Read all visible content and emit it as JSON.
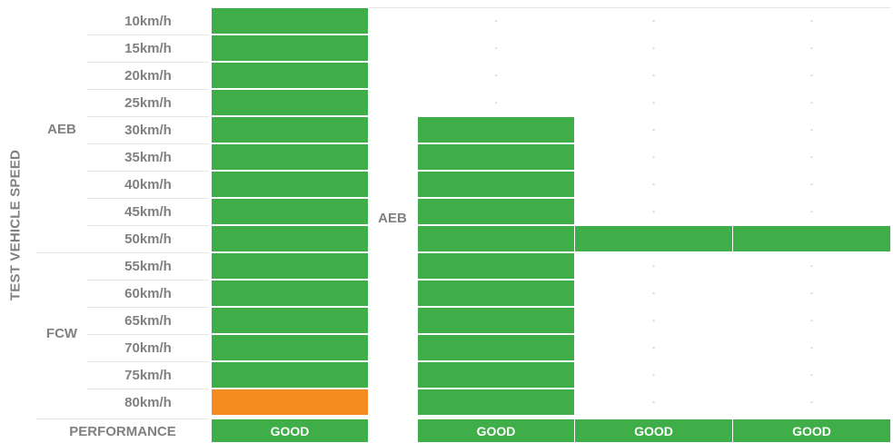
{
  "colors": {
    "good": "#3fae49",
    "adequate": "#f68b1f",
    "none": "#ffffff"
  },
  "chart_data": {
    "type": "heatmap",
    "ylabel": "TEST VEHICLE SPEED",
    "groups": [
      {
        "label": "AEB",
        "from": "10km/h",
        "to": "50km/h"
      },
      {
        "label": "FCW",
        "from": "55km/h",
        "to": "80km/h"
      }
    ],
    "speeds": [
      "10km/h",
      "15km/h",
      "20km/h",
      "25km/h",
      "30km/h",
      "35km/h",
      "40km/h",
      "45km/h",
      "50km/h",
      "55km/h",
      "60km/h",
      "65km/h",
      "70km/h",
      "75km/h",
      "80km/h"
    ],
    "columns": [
      {
        "header": "",
        "status": [
          "good",
          "good",
          "good",
          "good",
          "good",
          "good",
          "good",
          "good",
          "good",
          "good",
          "good",
          "good",
          "good",
          "good",
          "adequate"
        ],
        "performance": "GOOD"
      },
      {
        "header": "AEB",
        "status": [
          "-",
          "-",
          "-",
          "-",
          "good",
          "good",
          "good",
          "good",
          "good",
          "good",
          "good",
          "good",
          "good",
          "good",
          "good"
        ],
        "performance": "GOOD"
      },
      {
        "header": "",
        "status": [
          "-",
          "-",
          "-",
          "-",
          "-",
          "-",
          "-",
          "-",
          "good",
          "-",
          "-",
          "-",
          "-",
          "-",
          "-"
        ],
        "performance": "GOOD"
      },
      {
        "header": "",
        "status": [
          "-",
          "-",
          "-",
          "-",
          "-",
          "-",
          "-",
          "-",
          "good",
          "-",
          "-",
          "-",
          "-",
          "-",
          "-"
        ],
        "performance": "GOOD"
      }
    ],
    "performance_label": "PERFORMANCE",
    "empty_marker": "-"
  }
}
